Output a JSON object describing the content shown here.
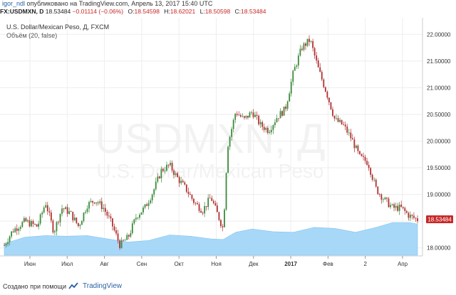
{
  "header": {
    "user": "igor_ndl",
    "published_text": "опубликовано на TradingView.com, Апрель 13, 2017 15:40 UTC"
  },
  "quote": {
    "symbol": "FX:USDMXN, D",
    "last": "18.53484",
    "change": "−0.01114 (−0.06%)",
    "o_label": "O:",
    "o": "18.54598",
    "h_label": "H:",
    "h": "18.62021",
    "l_label": "L:",
    "l": "18.50598",
    "c_label": "C:",
    "c": "18.53484"
  },
  "legend": {
    "title": "U.S. Dollar/Mexican Peso, Д, FXCM",
    "volume": "Объём (20, false)"
  },
  "watermark": {
    "symbol": "USDMXN, Д",
    "name": "U.S. Dollar/Mexican Peso"
  },
  "footer": {
    "credit": "Создано при помощи",
    "brand": "TradingView"
  },
  "colors": {
    "up": "#3a8a3a",
    "down": "#b03030",
    "volume_fill": "#a8d8f8",
    "price_tag": "#c62828",
    "grid": "#eeeeee",
    "brand": "#2962a4"
  },
  "chart_data": {
    "type": "candlestick",
    "title": "U.S. Dollar/Mexican Peso, Д, FXCM",
    "x_ticks": [
      "Июн",
      "Июл",
      "Авг",
      "Сен",
      "Окт",
      "Ноя",
      "Дек",
      "2017",
      "Фев",
      "2",
      "Апр"
    ],
    "y_ticks": [
      "18.00000",
      "18.50000",
      "19.00000",
      "19.50000",
      "20.00000",
      "20.50000",
      "21.00000",
      "21.50000",
      "22.00000"
    ],
    "y_range": [
      17.85,
      22.15
    ],
    "last_price_label": "18.53484",
    "last_price": 18.53484,
    "close_path": [
      [
        0.0,
        18.05
      ],
      [
        0.02,
        18.32
      ],
      [
        0.05,
        18.5
      ],
      [
        0.08,
        18.4
      ],
      [
        0.1,
        18.85
      ],
      [
        0.12,
        18.3
      ],
      [
        0.14,
        18.75
      ],
      [
        0.16,
        18.65
      ],
      [
        0.18,
        18.4
      ],
      [
        0.2,
        18.8
      ],
      [
        0.22,
        18.9
      ],
      [
        0.24,
        18.75
      ],
      [
        0.26,
        18.45
      ],
      [
        0.28,
        18.05
      ],
      [
        0.3,
        18.2
      ],
      [
        0.32,
        18.6
      ],
      [
        0.34,
        18.75
      ],
      [
        0.36,
        19.05
      ],
      [
        0.38,
        19.45
      ],
      [
        0.4,
        19.55
      ],
      [
        0.42,
        19.3
      ],
      [
        0.44,
        19.1
      ],
      [
        0.46,
        18.85
      ],
      [
        0.48,
        18.7
      ],
      [
        0.5,
        18.95
      ],
      [
        0.52,
        18.55
      ],
      [
        0.53,
        18.35
      ],
      [
        0.54,
        19.9
      ],
      [
        0.56,
        20.55
      ],
      [
        0.58,
        20.4
      ],
      [
        0.6,
        20.55
      ],
      [
        0.62,
        20.3
      ],
      [
        0.64,
        20.2
      ],
      [
        0.66,
        20.45
      ],
      [
        0.68,
        20.6
      ],
      [
        0.7,
        21.3
      ],
      [
        0.72,
        21.75
      ],
      [
        0.74,
        21.9
      ],
      [
        0.76,
        21.35
      ],
      [
        0.78,
        20.9
      ],
      [
        0.8,
        20.4
      ],
      [
        0.82,
        20.3
      ],
      [
        0.84,
        20.05
      ],
      [
        0.86,
        19.7
      ],
      [
        0.88,
        19.6
      ],
      [
        0.9,
        19.1
      ],
      [
        0.92,
        18.9
      ],
      [
        0.94,
        18.75
      ],
      [
        0.96,
        18.75
      ],
      [
        0.98,
        18.6
      ],
      [
        1.0,
        18.53
      ]
    ],
    "volume_path": [
      [
        0.0,
        0.35
      ],
      [
        0.05,
        0.55
      ],
      [
        0.1,
        0.6
      ],
      [
        0.15,
        0.58
      ],
      [
        0.2,
        0.6
      ],
      [
        0.25,
        0.5
      ],
      [
        0.3,
        0.4
      ],
      [
        0.35,
        0.45
      ],
      [
        0.4,
        0.62
      ],
      [
        0.45,
        0.58
      ],
      [
        0.5,
        0.5
      ],
      [
        0.53,
        0.48
      ],
      [
        0.56,
        0.7
      ],
      [
        0.6,
        0.8
      ],
      [
        0.65,
        0.72
      ],
      [
        0.7,
        0.7
      ],
      [
        0.75,
        0.85
      ],
      [
        0.8,
        0.82
      ],
      [
        0.85,
        0.7
      ],
      [
        0.9,
        0.85
      ],
      [
        0.94,
        1.0
      ],
      [
        0.98,
        1.0
      ],
      [
        1.0,
        0.95
      ]
    ]
  }
}
